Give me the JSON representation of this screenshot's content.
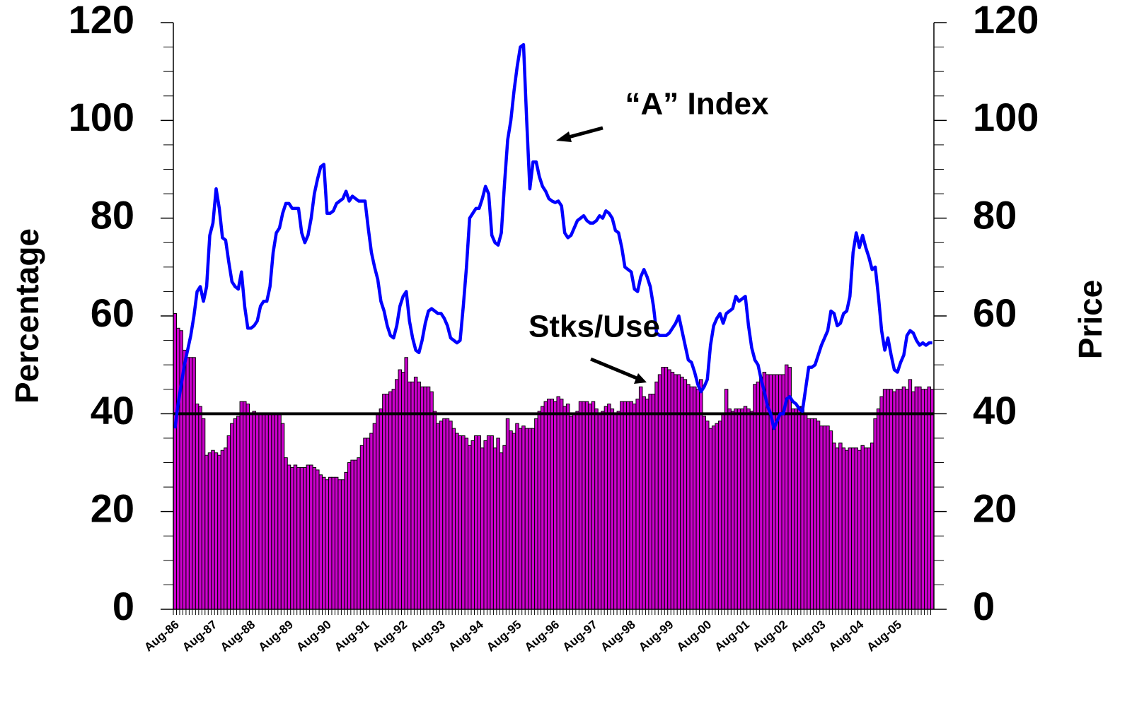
{
  "chart_data": {
    "type": "combo",
    "y_label": "Percentage",
    "y2_label": "Price",
    "categories": [
      "Aug-86",
      null,
      null,
      null,
      null,
      null,
      null,
      null,
      null,
      null,
      null,
      null,
      "Aug-87",
      null,
      null,
      null,
      null,
      null,
      null,
      null,
      null,
      null,
      null,
      null,
      "Aug-88",
      null,
      null,
      null,
      null,
      null,
      null,
      null,
      null,
      null,
      null,
      null,
      "Aug-89",
      null,
      null,
      null,
      null,
      null,
      null,
      null,
      null,
      null,
      null,
      null,
      "Aug-90",
      null,
      null,
      null,
      null,
      null,
      null,
      null,
      null,
      null,
      null,
      null,
      "Aug-91",
      null,
      null,
      null,
      null,
      null,
      null,
      null,
      null,
      null,
      null,
      null,
      "Aug-92",
      null,
      null,
      null,
      null,
      null,
      null,
      null,
      null,
      null,
      null,
      null,
      "Aug-93",
      null,
      null,
      null,
      null,
      null,
      null,
      null,
      null,
      null,
      null,
      null,
      "Aug-94",
      null,
      null,
      null,
      null,
      null,
      null,
      null,
      null,
      null,
      null,
      null,
      "Aug-95",
      null,
      null,
      null,
      null,
      null,
      null,
      null,
      null,
      null,
      null,
      null,
      "Aug-96",
      null,
      null,
      null,
      null,
      null,
      null,
      null,
      null,
      null,
      null,
      null,
      "Aug-97",
      null,
      null,
      null,
      null,
      null,
      null,
      null,
      null,
      null,
      null,
      null,
      "Aug-98",
      null,
      null,
      null,
      null,
      null,
      null,
      null,
      null,
      null,
      null,
      null,
      "Aug-99",
      null,
      null,
      null,
      null,
      null,
      null,
      null,
      null,
      null,
      null,
      null,
      "Aug-00",
      null,
      null,
      null,
      null,
      null,
      null,
      null,
      null,
      null,
      null,
      null,
      "Aug-01",
      null,
      null,
      null,
      null,
      null,
      null,
      null,
      null,
      null,
      null,
      null,
      "Aug-02",
      null,
      null,
      null,
      null,
      null,
      null,
      null,
      null,
      null,
      null,
      null,
      "Aug-03",
      null,
      null,
      null,
      null,
      null,
      null,
      null,
      null,
      null,
      null,
      null,
      "Aug-04",
      null,
      null,
      null,
      null,
      null,
      null,
      null,
      null,
      null,
      null,
      null,
      "Aug-05",
      null,
      null,
      null,
      null,
      null,
      null,
      null,
      null,
      null,
      null,
      null
    ],
    "series": [
      {
        "name": "Stks/Use",
        "type": "bar",
        "color": "#cc00cc",
        "values": [
          60.5,
          57.5,
          57,
          53,
          51.5,
          51.5,
          51.5,
          42,
          41.5,
          39,
          31.5,
          32,
          32.5,
          32,
          31.5,
          32.5,
          33,
          35.5,
          38,
          39,
          39.5,
          42.5,
          42.5,
          42,
          40,
          40.5,
          40,
          40,
          40,
          40,
          40,
          40,
          40,
          40,
          38,
          31,
          29.5,
          29,
          29.5,
          29,
          29,
          29,
          29.5,
          29.5,
          29,
          28.5,
          27.5,
          27,
          26.5,
          27,
          27,
          27,
          26.5,
          26.5,
          28,
          30,
          30.5,
          30.5,
          31,
          33.5,
          35,
          35,
          36,
          38,
          40,
          41,
          44,
          44,
          44.5,
          45,
          47,
          49,
          48.5,
          51.5,
          46.5,
          46.5,
          47.5,
          46.5,
          45.5,
          45.5,
          45.5,
          44.5,
          40.5,
          38,
          38.5,
          39,
          39,
          38.5,
          37,
          36,
          35.5,
          35.5,
          35,
          33.5,
          34.5,
          35.5,
          35.5,
          33,
          34.5,
          35.5,
          35.5,
          33,
          35,
          32,
          33.5,
          39,
          36.5,
          36,
          38,
          37,
          37.5,
          37,
          37,
          37,
          39,
          40.5,
          41.5,
          42.5,
          43,
          43,
          42.5,
          43.5,
          43,
          41.5,
          42,
          39.5,
          40,
          40.5,
          42.5,
          42.5,
          42.5,
          42,
          42.5,
          41,
          40,
          40.5,
          41.5,
          42,
          41,
          40,
          40.5,
          42.5,
          42.5,
          42.5,
          42.5,
          42,
          43,
          45.5,
          43.5,
          43,
          44,
          44,
          46.5,
          48,
          49.5,
          49.5,
          49,
          48.5,
          48,
          48,
          47.5,
          47,
          46,
          45.5,
          45.5,
          45,
          47,
          39.5,
          38.5,
          37,
          37.5,
          38,
          38.5,
          40,
          45,
          41,
          40.5,
          41,
          41,
          41,
          41.5,
          41,
          40.5,
          46,
          46.5,
          47.5,
          48.5,
          48,
          48,
          48,
          48,
          48,
          48,
          50,
          49.5,
          41,
          41,
          41.5,
          41.5,
          40,
          39,
          39,
          39,
          38.5,
          37.5,
          37.5,
          37.5,
          36.5,
          34,
          33,
          34,
          33,
          32.5,
          33,
          33,
          33,
          32.5,
          33.5,
          33,
          33,
          34,
          39,
          41,
          43.5,
          45,
          45,
          45,
          44.5,
          45,
          45,
          45.5,
          45,
          47,
          44.5,
          45.5,
          45.5,
          45,
          45,
          45.5,
          45
        ]
      },
      {
        "name": "“A” Index",
        "type": "line",
        "color": "#0000ff",
        "axis": "y2",
        "values": [
          37,
          42,
          46,
          50,
          53,
          56,
          60,
          65,
          66,
          63,
          66,
          76.5,
          79,
          86,
          82,
          76,
          75.5,
          71,
          67,
          66,
          65.5,
          69,
          62,
          57.5,
          57.5,
          58,
          59,
          62,
          63,
          63,
          66,
          73,
          77,
          78,
          81,
          83,
          83,
          82,
          82,
          82,
          77,
          75,
          76.5,
          80,
          85,
          88,
          90.5,
          91,
          81,
          81,
          81.5,
          83,
          83.5,
          84,
          85.5,
          83.5,
          84.5,
          84,
          83.5,
          83.5,
          83.5,
          78,
          73,
          70,
          67.5,
          63,
          61,
          58,
          56,
          55.5,
          58,
          62,
          64,
          65,
          59,
          55.5,
          53,
          52.5,
          55,
          58.5,
          61,
          61.5,
          61,
          60.5,
          60.5,
          59.5,
          58,
          55.5,
          55,
          54.5,
          55,
          62,
          70,
          80,
          81,
          82,
          82,
          84,
          86.5,
          85,
          76.5,
          75,
          74.5,
          77,
          87,
          96,
          100,
          106,
          111,
          115,
          115.5,
          100,
          86,
          91.5,
          91.5,
          88.5,
          86.5,
          85.5,
          84,
          83.5,
          83.2,
          83.5,
          82.5,
          77,
          76,
          76.5,
          78,
          79.5,
          80,
          80.5,
          79.5,
          79,
          79,
          79.5,
          80.5,
          80,
          81.5,
          81,
          80,
          77.5,
          77,
          74,
          70,
          69.5,
          69,
          65.5,
          65,
          68,
          69.5,
          68,
          66,
          62,
          56.5,
          56,
          56,
          56,
          56.5,
          57.5,
          58.5,
          60,
          57,
          54,
          51,
          50.5,
          48.5,
          46,
          44.5,
          45.5,
          47,
          54,
          58,
          59.5,
          60.5,
          58.5,
          60.5,
          61,
          61.5,
          64,
          63,
          63.5,
          64,
          58,
          53.5,
          51,
          50,
          47,
          44.5,
          41.5,
          40,
          37,
          38.5,
          40,
          40,
          43,
          43.5,
          42.5,
          42,
          41,
          40.5,
          45,
          49.5,
          49.5,
          50,
          52,
          54,
          55.5,
          57,
          61,
          60.5,
          58,
          58.5,
          60.5,
          61,
          64,
          73,
          77,
          74,
          76.5,
          74,
          72,
          69.5,
          70,
          64,
          57,
          53,
          55.5,
          52,
          49,
          48.5,
          50.5,
          52,
          56,
          57,
          56.5,
          55,
          54,
          54.5,
          54,
          54.5,
          54.5
        ]
      }
    ],
    "reference_line": 40,
    "ylim": [
      0,
      120
    ],
    "yticks": [
      0,
      20,
      40,
      60,
      80,
      100,
      120
    ],
    "y2lim": [
      0,
      120
    ],
    "y2ticks": [
      0,
      20,
      40,
      60,
      80,
      100,
      120
    ]
  }
}
